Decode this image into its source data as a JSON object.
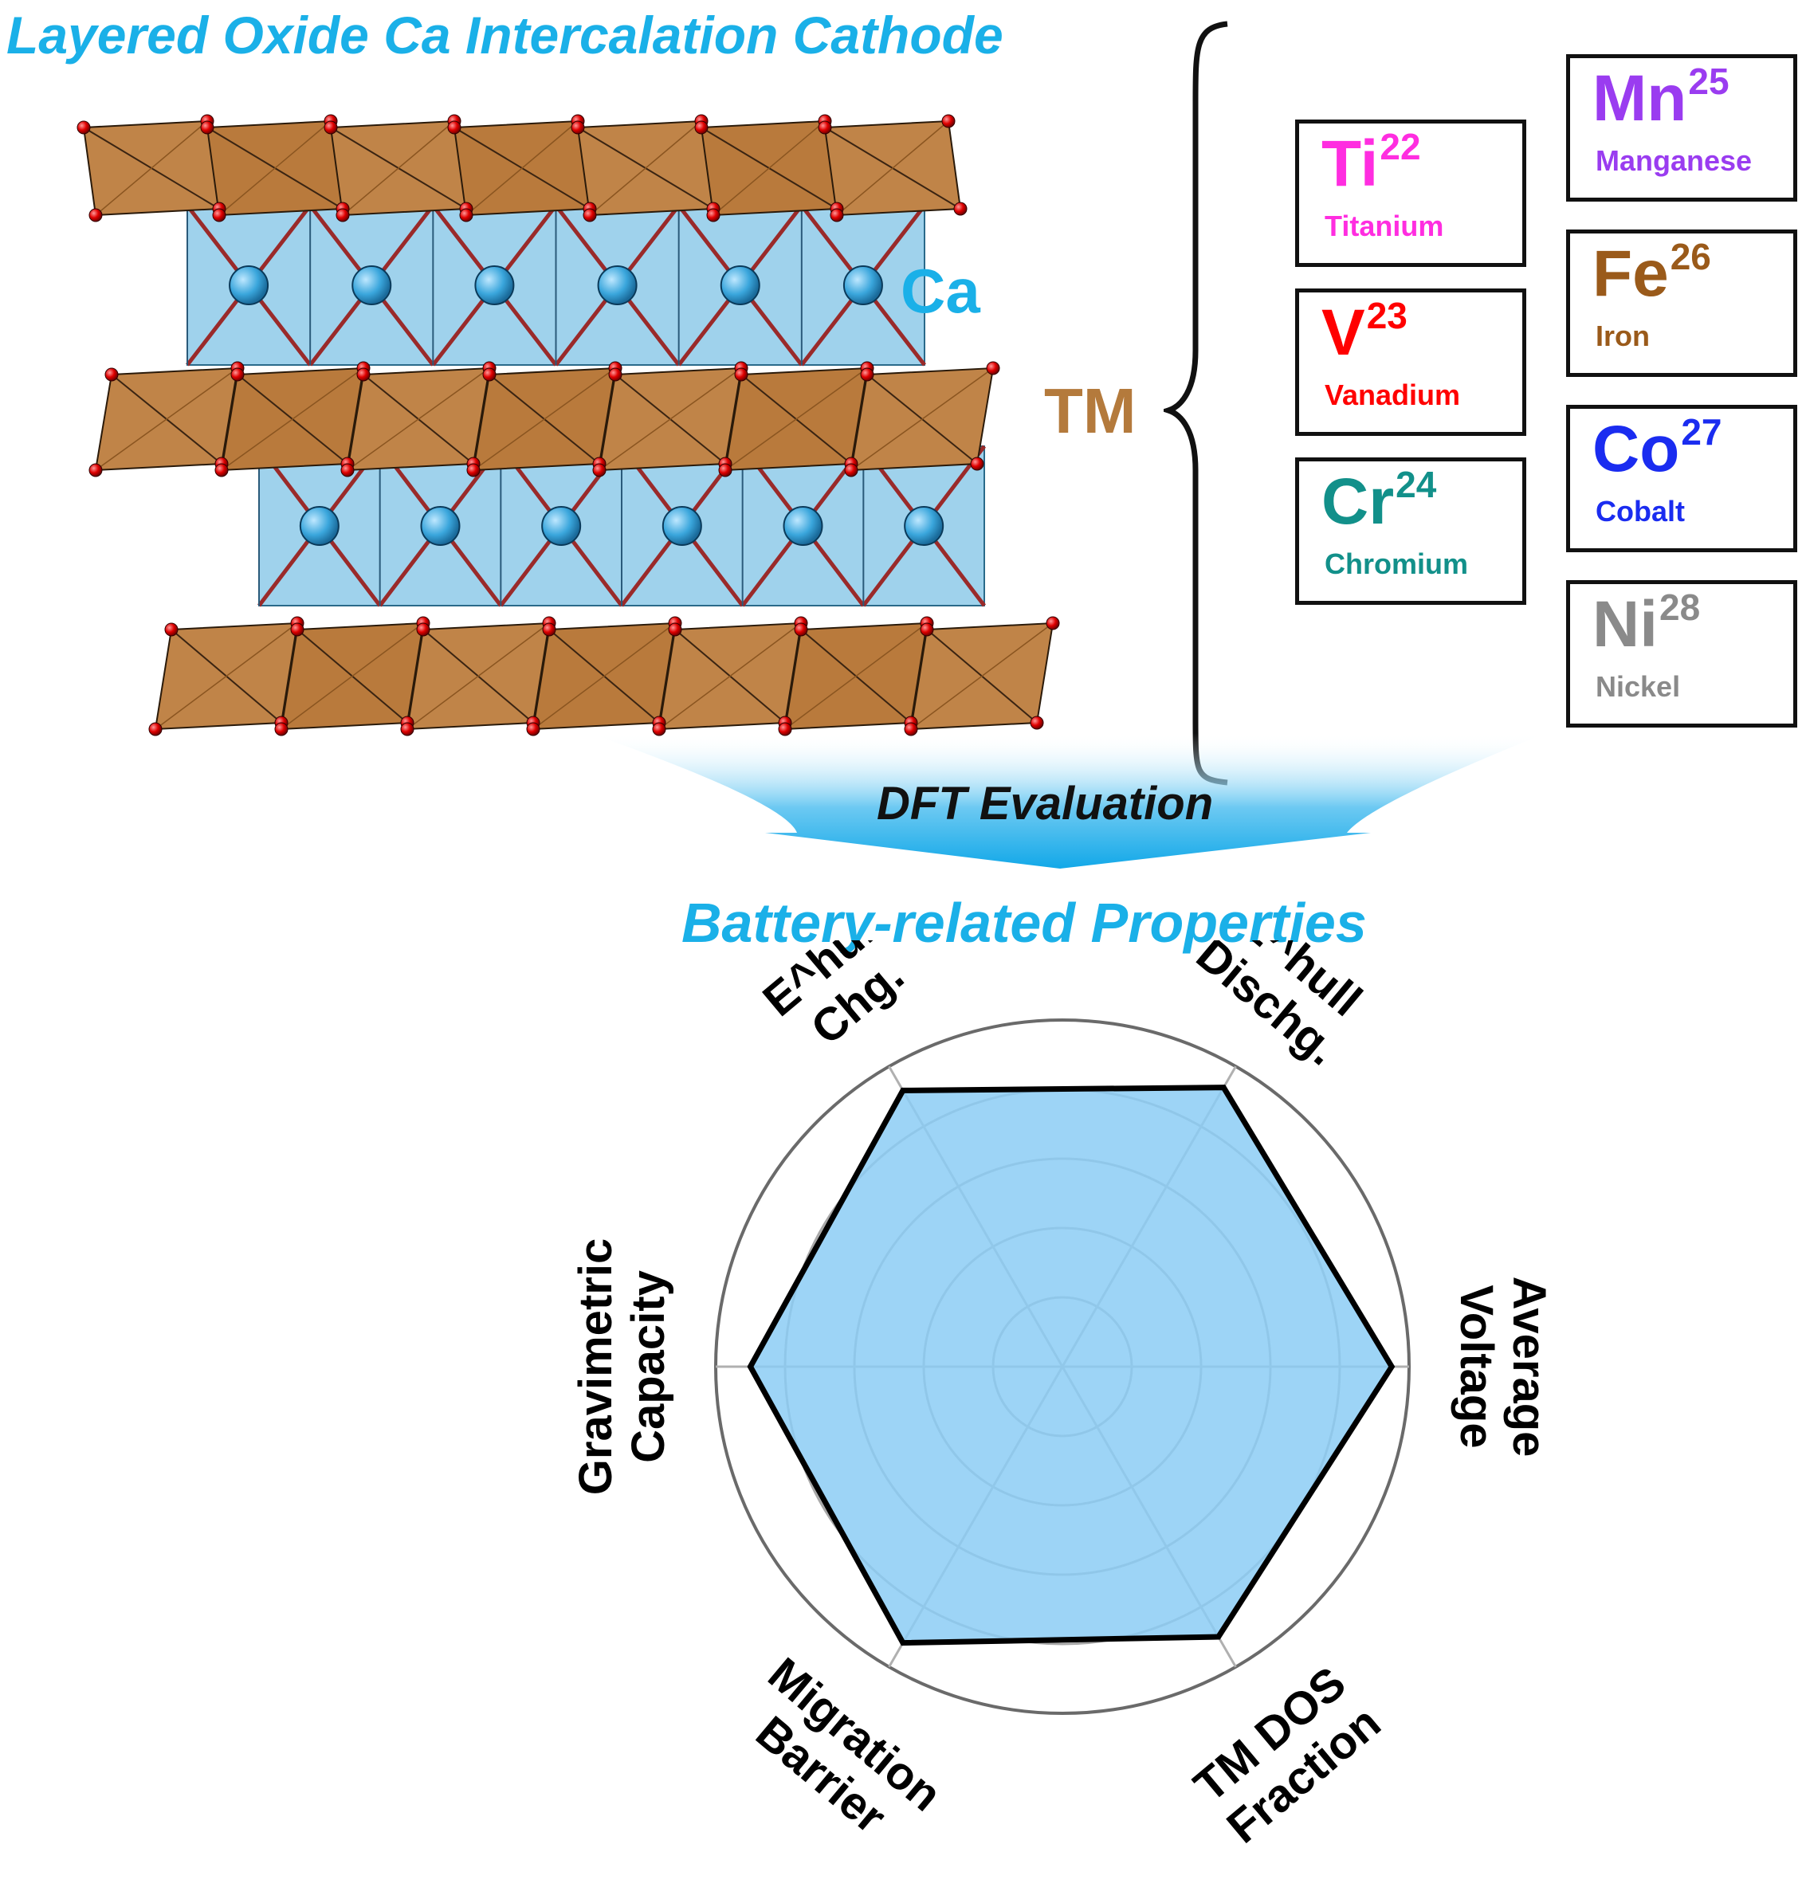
{
  "title_top": "Layered Oxide Ca Intercalation Cathode",
  "title_bottom": "Battery-related Properties",
  "arrow_label": "DFT Evaluation",
  "structure_labels": {
    "ca": "Ca",
    "tm": "TM"
  },
  "elements": [
    {
      "symbol": "Ti",
      "number": "22",
      "name": "Titanium",
      "color": "#ff2de0"
    },
    {
      "symbol": "V",
      "number": "23",
      "name": "Vanadium",
      "color": "#ff0000"
    },
    {
      "symbol": "Cr",
      "number": "24",
      "name": "Chromium",
      "color": "#12908a"
    },
    {
      "symbol": "Mn",
      "number": "25",
      "name": "Manganese",
      "color": "#9a3cf0"
    },
    {
      "symbol": "Fe",
      "number": "26",
      "name": "Iron",
      "color": "#9a5a1a"
    },
    {
      "symbol": "Co",
      "number": "27",
      "name": "Cobalt",
      "color": "#1a2cf0"
    },
    {
      "symbol": "Ni",
      "number": "28",
      "name": "Nickel",
      "color": "#8a8a8a"
    }
  ],
  "chart_data": {
    "type": "radar",
    "axes": [
      {
        "label": [
          "Average",
          "Voltage"
        ]
      },
      {
        "label": [
          "E^hull",
          "Dischg."
        ]
      },
      {
        "label": [
          "E^hull",
          "Chg."
        ]
      },
      {
        "label": [
          "Gravimetric",
          "Capacity"
        ]
      },
      {
        "label": [
          "Migration",
          "Barrier"
        ]
      },
      {
        "label": [
          "TM DOS",
          "Fraction"
        ]
      }
    ],
    "values": [
      0.95,
      0.93,
      0.92,
      0.9,
      0.92,
      0.9
    ],
    "range": [
      0,
      1
    ],
    "rings": 5,
    "fill_color": "#8ccdf5",
    "line_color": "#000000"
  }
}
